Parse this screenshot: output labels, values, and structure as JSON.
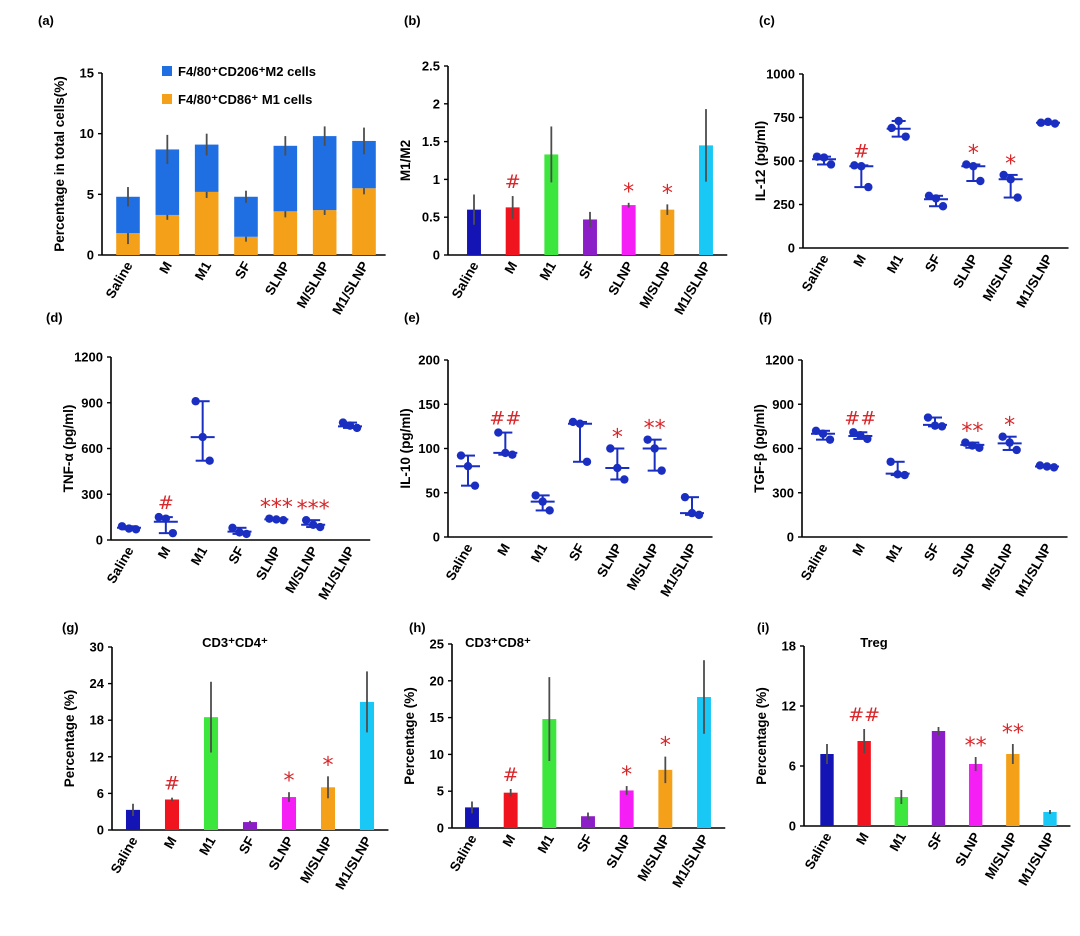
{
  "chart_data": [
    {
      "id": "a",
      "panel_label": "(a)",
      "type": "bar",
      "stacked": true,
      "title": "",
      "ylabel": "Percentage in total cells(%)",
      "xlabel": "",
      "ylim": [
        0,
        15
      ],
      "yticks": [
        0,
        5,
        10,
        15
      ],
      "ytick_labels": [
        "0",
        "5",
        "10",
        "15"
      ],
      "categories": [
        "Saline",
        "M",
        "M1",
        "SF",
        "SLNP",
        "M/SLNP",
        "M1/SLNP"
      ],
      "legend_position": "top",
      "series": [
        {
          "name": "F4/80⁺CD86⁺ M1 cells",
          "color": "#f5a019",
          "values": [
            1.8,
            3.3,
            5.2,
            1.5,
            3.6,
            3.7,
            5.5
          ],
          "errors": [
            0.9,
            0.4,
            0.5,
            0.4,
            0.5,
            0.4,
            0.5
          ]
        },
        {
          "name": "F4/80⁺CD206⁺M2 cells",
          "color": "#1f6fe3",
          "values": [
            3.0,
            5.4,
            3.9,
            3.3,
            5.4,
            6.1,
            3.9
          ],
          "errors": [
            0.8,
            1.2,
            0.9,
            0.5,
            0.8,
            0.8,
            1.1
          ]
        }
      ],
      "annotations": []
    },
    {
      "id": "b",
      "panel_label": "(b)",
      "type": "bar",
      "title": "",
      "ylabel": "M1/M2",
      "xlabel": "",
      "ylim": [
        0,
        2.5
      ],
      "yticks": [
        0,
        0.5,
        1,
        1.5,
        2,
        2.5
      ],
      "ytick_labels": [
        "0",
        "0.5",
        "1",
        "1.5",
        "2",
        "2.5"
      ],
      "categories": [
        "Saline",
        "M",
        "M1",
        "SF",
        "SLNP",
        "M/SLNP",
        "M1/SLNP"
      ],
      "values": [
        0.6,
        0.63,
        1.33,
        0.47,
        0.66,
        0.6,
        1.45
      ],
      "errors": [
        0.2,
        0.15,
        0.37,
        0.1,
        0.03,
        0.07,
        0.48
      ],
      "colors": [
        "#1414b4",
        "#f0141e",
        "#3ce63c",
        "#8c1ec8",
        "#f51ef5",
        "#f5a019",
        "#19c8f5"
      ],
      "annotations": [
        {
          "category": "M",
          "text": "#"
        },
        {
          "category": "SLNP",
          "text": "*"
        },
        {
          "category": "M/SLNP",
          "text": "*"
        }
      ]
    },
    {
      "id": "c",
      "panel_label": "(c)",
      "type": "scatter",
      "title": "",
      "ylabel": "IL-12 (pg/ml)",
      "xlabel": "",
      "ylim": [
        0,
        1000
      ],
      "yticks": [
        0,
        250,
        500,
        750,
        1000
      ],
      "ytick_labels": [
        "0",
        "250",
        "500",
        "750",
        "1000"
      ],
      "categories": [
        "Saline",
        "M",
        "M1",
        "SF",
        "SLNP",
        "M/SLNP",
        "M1/SLNP"
      ],
      "points": [
        [
          525,
          520,
          480
        ],
        [
          475,
          470,
          350
        ],
        [
          690,
          730,
          640
        ],
        [
          300,
          285,
          240
        ],
        [
          480,
          470,
          385
        ],
        [
          420,
          395,
          290
        ],
        [
          720,
          725,
          715
        ]
      ],
      "means": [
        510,
        470,
        685,
        280,
        470,
        395,
        720
      ],
      "annotations": [
        {
          "category": "M",
          "text": "#"
        },
        {
          "category": "SLNP",
          "text": "*"
        },
        {
          "category": "M/SLNP",
          "text": "*"
        }
      ]
    },
    {
      "id": "d",
      "panel_label": "(d)",
      "type": "scatter",
      "title": "",
      "ylabel": "TNF-α (pg/ml)",
      "xlabel": "",
      "ylim": [
        0,
        1200
      ],
      "yticks": [
        0,
        300,
        600,
        900,
        1200
      ],
      "ytick_labels": [
        "0",
        "300",
        "600",
        "900",
        "1200"
      ],
      "categories": [
        "Saline",
        "M",
        "M1",
        "SF",
        "SLNP",
        "M/SLNP",
        "M1/SLNP"
      ],
      "points": [
        [
          90,
          75,
          70
        ],
        [
          150,
          140,
          45
        ],
        [
          910,
          675,
          520
        ],
        [
          80,
          50,
          40
        ],
        [
          140,
          135,
          130
        ],
        [
          130,
          100,
          85
        ],
        [
          770,
          750,
          735
        ]
      ],
      "means": [
        80,
        120,
        675,
        55,
        135,
        100,
        745
      ],
      "annotations": [
        {
          "category": "M",
          "text": "#"
        },
        {
          "category": "SLNP",
          "text": "***"
        },
        {
          "category": "M/SLNP",
          "text": "***"
        }
      ]
    },
    {
      "id": "e",
      "panel_label": "(e)",
      "type": "scatter",
      "title": "",
      "ylabel": "IL-10 (pg/ml)",
      "xlabel": "",
      "ylim": [
        0,
        200
      ],
      "yticks": [
        0,
        50,
        100,
        150,
        200
      ],
      "ytick_labels": [
        "0",
        "50",
        "100",
        "150",
        "200"
      ],
      "categories": [
        "Saline",
        "M",
        "M1",
        "SF",
        "SLNP",
        "M/SLNP",
        "M1/SLNP"
      ],
      "points": [
        [
          92,
          80,
          58
        ],
        [
          118,
          95,
          93
        ],
        [
          47,
          40,
          30
        ],
        [
          130,
          128,
          85
        ],
        [
          100,
          78,
          65
        ],
        [
          110,
          100,
          75
        ],
        [
          45,
          27,
          25
        ]
      ],
      "means": [
        80,
        95,
        40,
        128,
        78,
        100,
        27
      ],
      "annotations": [
        {
          "category": "M",
          "text": "##"
        },
        {
          "category": "SLNP",
          "text": "*"
        },
        {
          "category": "M/SLNP",
          "text": "**"
        }
      ]
    },
    {
      "id": "f",
      "panel_label": "(f)",
      "type": "scatter",
      "title": "",
      "ylabel": "TGF-β (pg/ml)",
      "xlabel": "",
      "ylim": [
        0,
        1200
      ],
      "yticks": [
        0,
        300,
        600,
        900,
        1200
      ],
      "ytick_labels": [
        "0",
        "300",
        "600",
        "900",
        "1200"
      ],
      "categories": [
        "Saline",
        "M",
        "M1",
        "SF",
        "SLNP",
        "M/SLNP",
        "M1/SLNP"
      ],
      "points": [
        [
          720,
          700,
          660
        ],
        [
          710,
          690,
          665
        ],
        [
          510,
          425,
          420
        ],
        [
          810,
          755,
          750
        ],
        [
          640,
          620,
          605
        ],
        [
          680,
          640,
          590
        ],
        [
          485,
          478,
          472
        ]
      ],
      "means": [
        700,
        685,
        430,
        760,
        625,
        635,
        478
      ],
      "annotations": [
        {
          "category": "M",
          "text": "##"
        },
        {
          "category": "SLNP",
          "text": "**"
        },
        {
          "category": "M/SLNP",
          "text": "*"
        }
      ]
    },
    {
      "id": "g",
      "panel_label": "(g)",
      "type": "bar",
      "title": "CD3⁺CD4⁺",
      "ylabel": "Percentage (%)",
      "xlabel": "",
      "ylim": [
        0,
        30
      ],
      "yticks": [
        0,
        6,
        12,
        18,
        24,
        30
      ],
      "ytick_labels": [
        "0",
        "6",
        "12",
        "18",
        "24",
        "30"
      ],
      "categories": [
        "Saline",
        "M",
        "M1",
        "SF",
        "SLNP",
        "M/SLNP",
        "M1/SLNP"
      ],
      "values": [
        3.3,
        5.0,
        18.5,
        1.3,
        5.4,
        7.0,
        21.0
      ],
      "errors": [
        1.0,
        0.3,
        5.8,
        0.2,
        0.8,
        1.8,
        5.0
      ],
      "colors": [
        "#1414b4",
        "#f0141e",
        "#3ce63c",
        "#8c1ec8",
        "#f51ef5",
        "#f5a019",
        "#19c8f5"
      ],
      "annotations": [
        {
          "category": "M",
          "text": "#"
        },
        {
          "category": "SLNP",
          "text": "*"
        },
        {
          "category": "M/SLNP",
          "text": "*"
        }
      ]
    },
    {
      "id": "h",
      "panel_label": "(h)",
      "type": "bar",
      "title": "CD3⁺CD8⁺",
      "ylabel": "Percentage (%)",
      "xlabel": "",
      "ylim": [
        0,
        25
      ],
      "yticks": [
        0,
        5,
        10,
        15,
        20,
        25
      ],
      "ytick_labels": [
        "0",
        "5",
        "10",
        "15",
        "20",
        "25"
      ],
      "categories": [
        "Saline",
        "M",
        "M1",
        "SF",
        "SLNP",
        "M/SLNP",
        "M1/SLNP"
      ],
      "values": [
        2.8,
        4.8,
        14.8,
        1.6,
        5.1,
        7.9,
        17.8
      ],
      "errors": [
        0.8,
        0.5,
        5.7,
        0.5,
        0.6,
        1.8,
        5.0
      ],
      "colors": [
        "#1414b4",
        "#f0141e",
        "#3ce63c",
        "#8c1ec8",
        "#f51ef5",
        "#f5a019",
        "#19c8f5"
      ],
      "annotations": [
        {
          "category": "M",
          "text": "#"
        },
        {
          "category": "SLNP",
          "text": "*"
        },
        {
          "category": "M/SLNP",
          "text": "*"
        }
      ]
    },
    {
      "id": "i",
      "panel_label": "(i)",
      "type": "bar",
      "title": "Treg",
      "ylabel": "Percentage (%)",
      "xlabel": "",
      "ylim": [
        0,
        18
      ],
      "yticks": [
        0,
        6,
        12,
        18
      ],
      "ytick_labels": [
        "0",
        "6",
        "12",
        "18"
      ],
      "categories": [
        "Saline",
        "M",
        "M1",
        "SF",
        "SLNP",
        "M/SLNP",
        "M1/SLNP"
      ],
      "values": [
        7.2,
        8.5,
        2.9,
        9.5,
        6.2,
        7.2,
        1.4
      ],
      "errors": [
        1.0,
        1.2,
        0.7,
        0.4,
        0.7,
        1.0,
        0.2
      ],
      "colors": [
        "#1414b4",
        "#f0141e",
        "#3ce63c",
        "#8c1ec8",
        "#f51ef5",
        "#f5a019",
        "#19c8f5"
      ],
      "annotations": [
        {
          "category": "M",
          "text": "##"
        },
        {
          "category": "SLNP",
          "text": "**"
        },
        {
          "category": "M/SLNP",
          "text": "**"
        }
      ]
    }
  ]
}
